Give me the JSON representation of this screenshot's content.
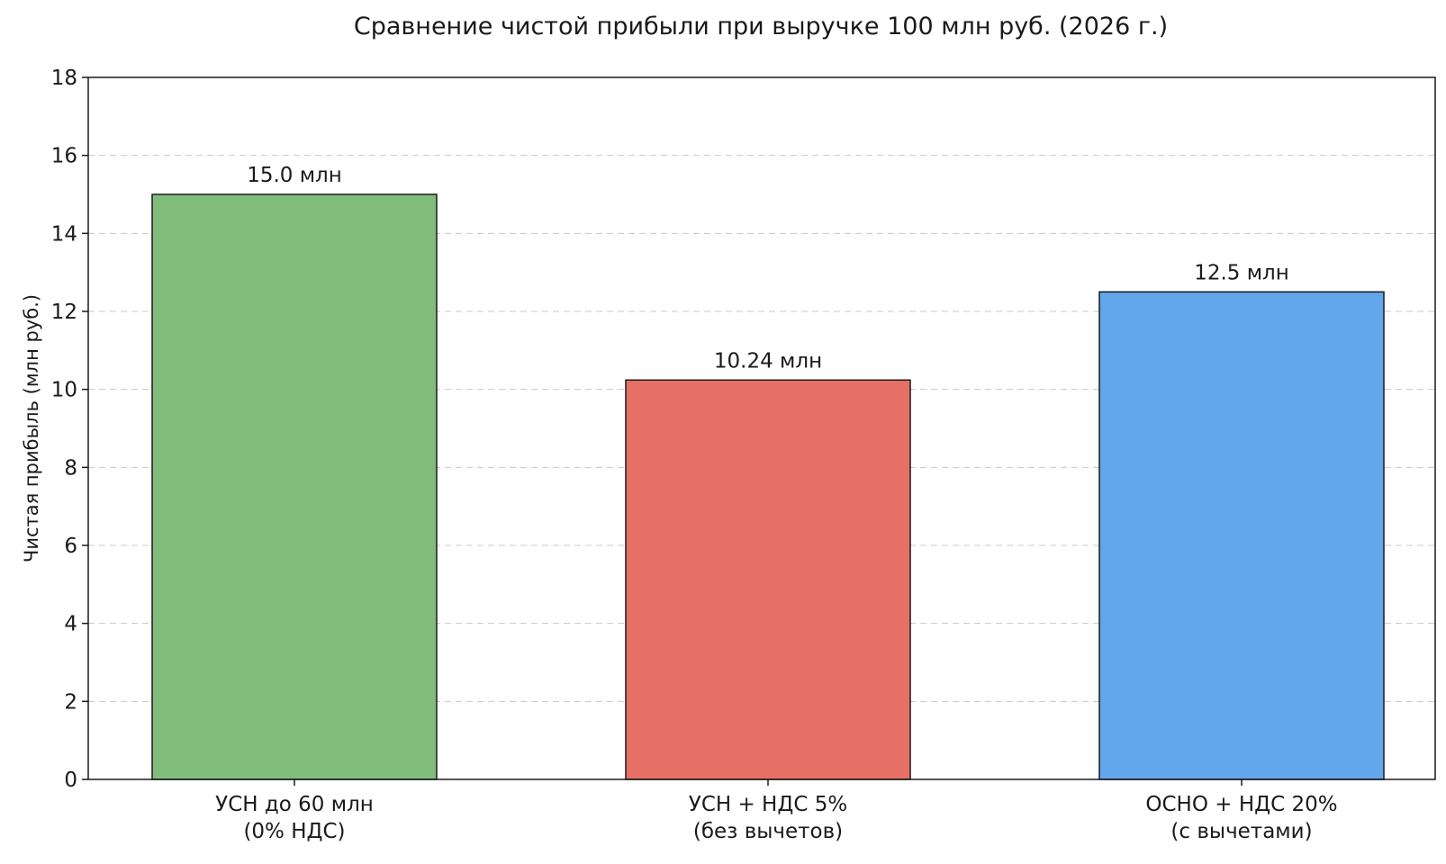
{
  "chart_data": {
    "type": "bar",
    "title": "Сравнение чистой прибыли при выручке 100 млн руб. (2026 г.)",
    "xlabel": "",
    "ylabel": "Чистая прибыль (млн руб.)",
    "ylim": [
      0,
      18
    ],
    "yticks": [
      0,
      2,
      4,
      6,
      8,
      10,
      12,
      14,
      16,
      18
    ],
    "grid": "horizontal dashed",
    "categories": [
      [
        "УСН до 60 млн",
        "(0% НДС)"
      ],
      [
        "УСН + НДС 5%",
        "(без вычетов)"
      ],
      [
        "ОСНО + НДС 20%",
        "(с вычетами)"
      ]
    ],
    "values": [
      15.0,
      10.24,
      12.5
    ],
    "data_labels": [
      "15.0 млн",
      "10.24 млн",
      "12.5 млн"
    ],
    "colors": [
      "#80bc7c",
      "#e67065",
      "#62a6ec"
    ]
  }
}
